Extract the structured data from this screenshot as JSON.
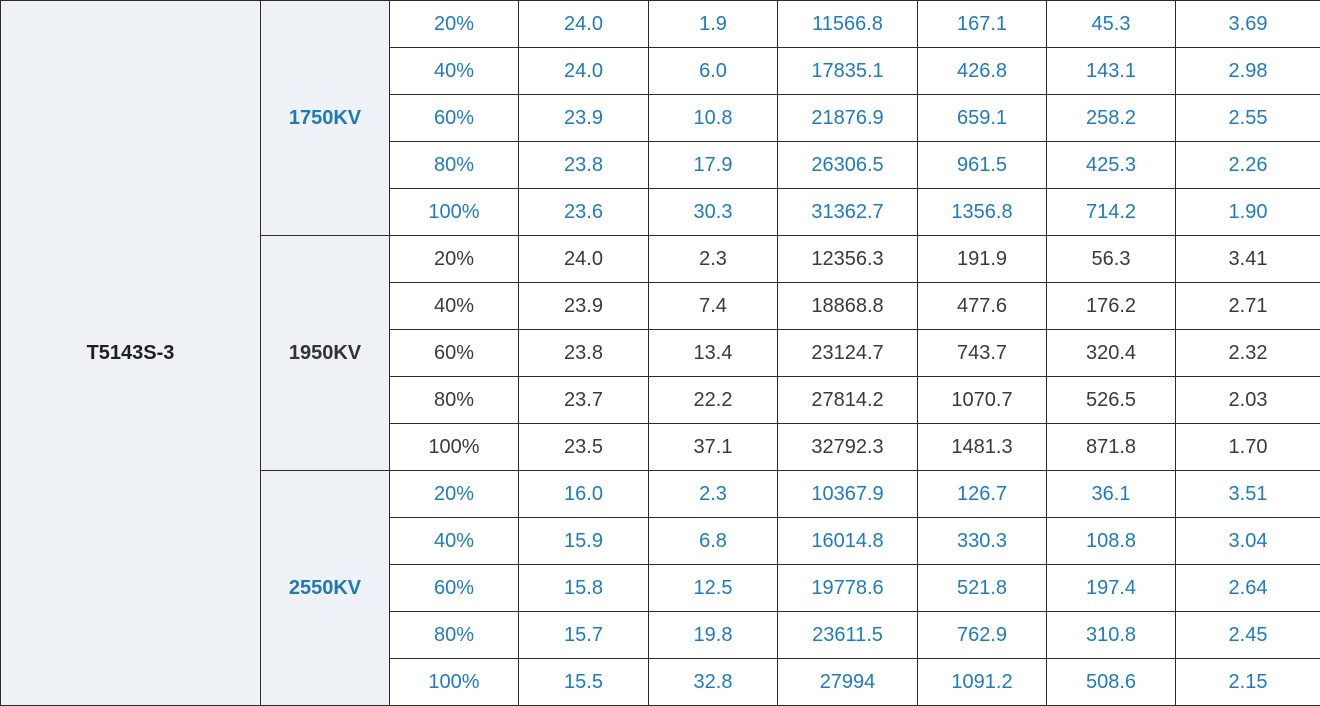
{
  "table": {
    "model": "T5143S-3",
    "groups": [
      {
        "voltage": "1750KV",
        "tone": "blue",
        "rows": [
          [
            "20%",
            "24.0",
            "1.9",
            "11566.8",
            "167.1",
            "45.3",
            "3.69"
          ],
          [
            "40%",
            "24.0",
            "6.0",
            "17835.1",
            "426.8",
            "143.1",
            "2.98"
          ],
          [
            "60%",
            "23.9",
            "10.8",
            "21876.9",
            "659.1",
            "258.2",
            "2.55"
          ],
          [
            "80%",
            "23.8",
            "17.9",
            "26306.5",
            "961.5",
            "425.3",
            "2.26"
          ],
          [
            "100%",
            "23.6",
            "30.3",
            "31362.7",
            "1356.8",
            "714.2",
            "1.90"
          ]
        ]
      },
      {
        "voltage": "1950KV",
        "tone": "dark",
        "rows": [
          [
            "20%",
            "24.0",
            "2.3",
            "12356.3",
            "191.9",
            "56.3",
            "3.41"
          ],
          [
            "40%",
            "23.9",
            "7.4",
            "18868.8",
            "477.6",
            "176.2",
            "2.71"
          ],
          [
            "60%",
            "23.8",
            "13.4",
            "23124.7",
            "743.7",
            "320.4",
            "2.32"
          ],
          [
            "80%",
            "23.7",
            "22.2",
            "27814.2",
            "1070.7",
            "526.5",
            "2.03"
          ],
          [
            "100%",
            "23.5",
            "37.1",
            "32792.3",
            "1481.3",
            "871.8",
            "1.70"
          ]
        ]
      },
      {
        "voltage": "2550KV",
        "tone": "blue",
        "rows": [
          [
            "20%",
            "16.0",
            "2.3",
            "10367.9",
            "126.7",
            "36.1",
            "3.51"
          ],
          [
            "40%",
            "15.9",
            "6.8",
            "16014.8",
            "330.3",
            "108.8",
            "3.04"
          ],
          [
            "60%",
            "15.8",
            "12.5",
            "19778.6",
            "521.8",
            "197.4",
            "2.64"
          ],
          [
            "80%",
            "15.7",
            "19.8",
            "23611.5",
            "762.9",
            "310.8",
            "2.45"
          ],
          [
            "100%",
            "15.5",
            "32.8",
            "27994",
            "1091.2",
            "508.6",
            "2.15"
          ]
        ]
      }
    ]
  },
  "colors": {
    "blue_text": "#1f7bbf",
    "dark_text": "#3a3a3a",
    "label_background": "#eef2f7",
    "border": "#2b2b2b"
  }
}
